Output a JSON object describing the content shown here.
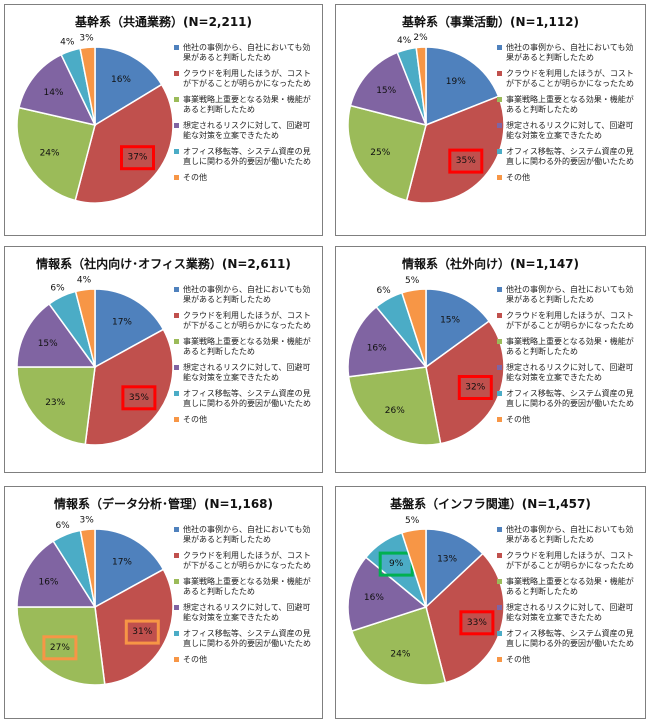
{
  "colors": {
    "series": [
      "#4F81BD",
      "#C0504D",
      "#9BBB59",
      "#8064A2",
      "#4BACC6",
      "#F79646"
    ],
    "highlight_red": "#FF0000",
    "highlight_orange": "#F79646",
    "highlight_green": "#00B050"
  },
  "legend": [
    "他社の事例から、自社においても効果があると判断したため",
    "クラウドを利用したほうが、コストが下がることが明らかになったため",
    "事業戦略上重要となる効果・機能があると判断したため",
    "想定されるリスクに対して、回避可能な対策を立案できたため",
    "オフィス移転等、システム資産の見直しに関わる外的要因が働いたため",
    "その他"
  ],
  "chart_data": [
    {
      "type": "pie",
      "title": "基幹系（共通業務）(N=2,211)",
      "categories": [
        "他社の事例から、自社においても効果があると判断したため",
        "クラウドを利用したほうが、コストが下がることが明らかになったため",
        "事業戦略上重要となる効果・機能があると判断したため",
        "想定されるリスクに対して、回避可能な対策を立案できたため",
        "オフィス移転等、システム資産の見直しに関わる外的要因が働いたため",
        "その他"
      ],
      "values": [
        16,
        37,
        24,
        14,
        4,
        3
      ],
      "labels": [
        "16%",
        "37%",
        "24%",
        "14%",
        "4%",
        "3%"
      ],
      "highlights": [
        {
          "index": 1,
          "color": "red"
        }
      ]
    },
    {
      "type": "pie",
      "title": "基幹系（事業活動）(N=1,112)",
      "categories": [
        "他社の事例から、自社においても効果があると判断したため",
        "クラウドを利用したほうが、コストが下がることが明らかになったため",
        "事業戦略上重要となる効果・機能があると判断したため",
        "想定されるリスクに対して、回避可能な対策を立案できたため",
        "オフィス移転等、システム資産の見直しに関わる外的要因が働いたため",
        "その他"
      ],
      "values": [
        19,
        35,
        25,
        15,
        4,
        2
      ],
      "labels": [
        "19%",
        "35%",
        "25%",
        "15%",
        "4%",
        "2%"
      ],
      "highlights": [
        {
          "index": 1,
          "color": "red"
        }
      ]
    },
    {
      "type": "pie",
      "title": "情報系（社内向け･オフィス業務）(N=2,611)",
      "categories": [
        "他社の事例から、自社においても効果があると判断したため",
        "クラウドを利用したほうが、コストが下がることが明らかになったため",
        "事業戦略上重要となる効果・機能があると判断したため",
        "想定されるリスクに対して、回避可能な対策を立案できたため",
        "オフィス移転等、システム資産の見直しに関わる外的要因が働いたため",
        "その他"
      ],
      "values": [
        17,
        35,
        23,
        15,
        6,
        4
      ],
      "labels": [
        "17%",
        "35%",
        "23%",
        "15%",
        "6%",
        "4%"
      ],
      "highlights": [
        {
          "index": 1,
          "color": "red"
        }
      ]
    },
    {
      "type": "pie",
      "title": "情報系（社外向け）(N=1,147)",
      "categories": [
        "他社の事例から、自社においても効果があると判断したため",
        "クラウドを利用したほうが、コストが下がることが明らかになったため",
        "事業戦略上重要となる効果・機能があると判断したため",
        "想定されるリスクに対して、回避可能な対策を立案できたため",
        "オフィス移転等、システム資産の見直しに関わる外的要因が働いたため",
        "その他"
      ],
      "values": [
        15,
        32,
        26,
        16,
        6,
        5
      ],
      "labels": [
        "15%",
        "32%",
        "26%",
        "16%",
        "6%",
        "5%"
      ],
      "highlights": [
        {
          "index": 1,
          "color": "red"
        }
      ]
    },
    {
      "type": "pie",
      "title": "情報系（データ分析･管理）(N=1,168)",
      "categories": [
        "他社の事例から、自社においても効果があると判断したため",
        "クラウドを利用したほうが、コストが下がることが明らかになったため",
        "事業戦略上重要となる効果・機能があると判断したため",
        "想定されるリスクに対して、回避可能な対策を立案できたため",
        "オフィス移転等、システム資産の見直しに関わる外的要因が働いたため",
        "その他"
      ],
      "values": [
        17,
        31,
        27,
        16,
        6,
        3
      ],
      "labels": [
        "17%",
        "31%",
        "27%",
        "16%",
        "6%",
        "3%"
      ],
      "highlights": [
        {
          "index": 1,
          "color": "orange"
        },
        {
          "index": 2,
          "color": "orange"
        }
      ]
    },
    {
      "type": "pie",
      "title": "基盤系（インフラ関連）(N=1,457)",
      "categories": [
        "他社の事例から、自社においても効果があると判断したため",
        "クラウドを利用したほうが、コストが下がることが明らかになったため",
        "事業戦略上重要となる効果・機能があると判断したため",
        "想定されるリスクに対して、回避可能な対策を立案できたため",
        "オフィス移転等、システム資産の見直しに関わる外的要因が働いたため",
        "その他"
      ],
      "values": [
        13,
        33,
        24,
        16,
        9,
        5
      ],
      "labels": [
        "13%",
        "33%",
        "24%",
        "16%",
        "9%",
        "5%"
      ],
      "highlights": [
        {
          "index": 1,
          "color": "red"
        },
        {
          "index": 4,
          "color": "green"
        }
      ]
    }
  ]
}
